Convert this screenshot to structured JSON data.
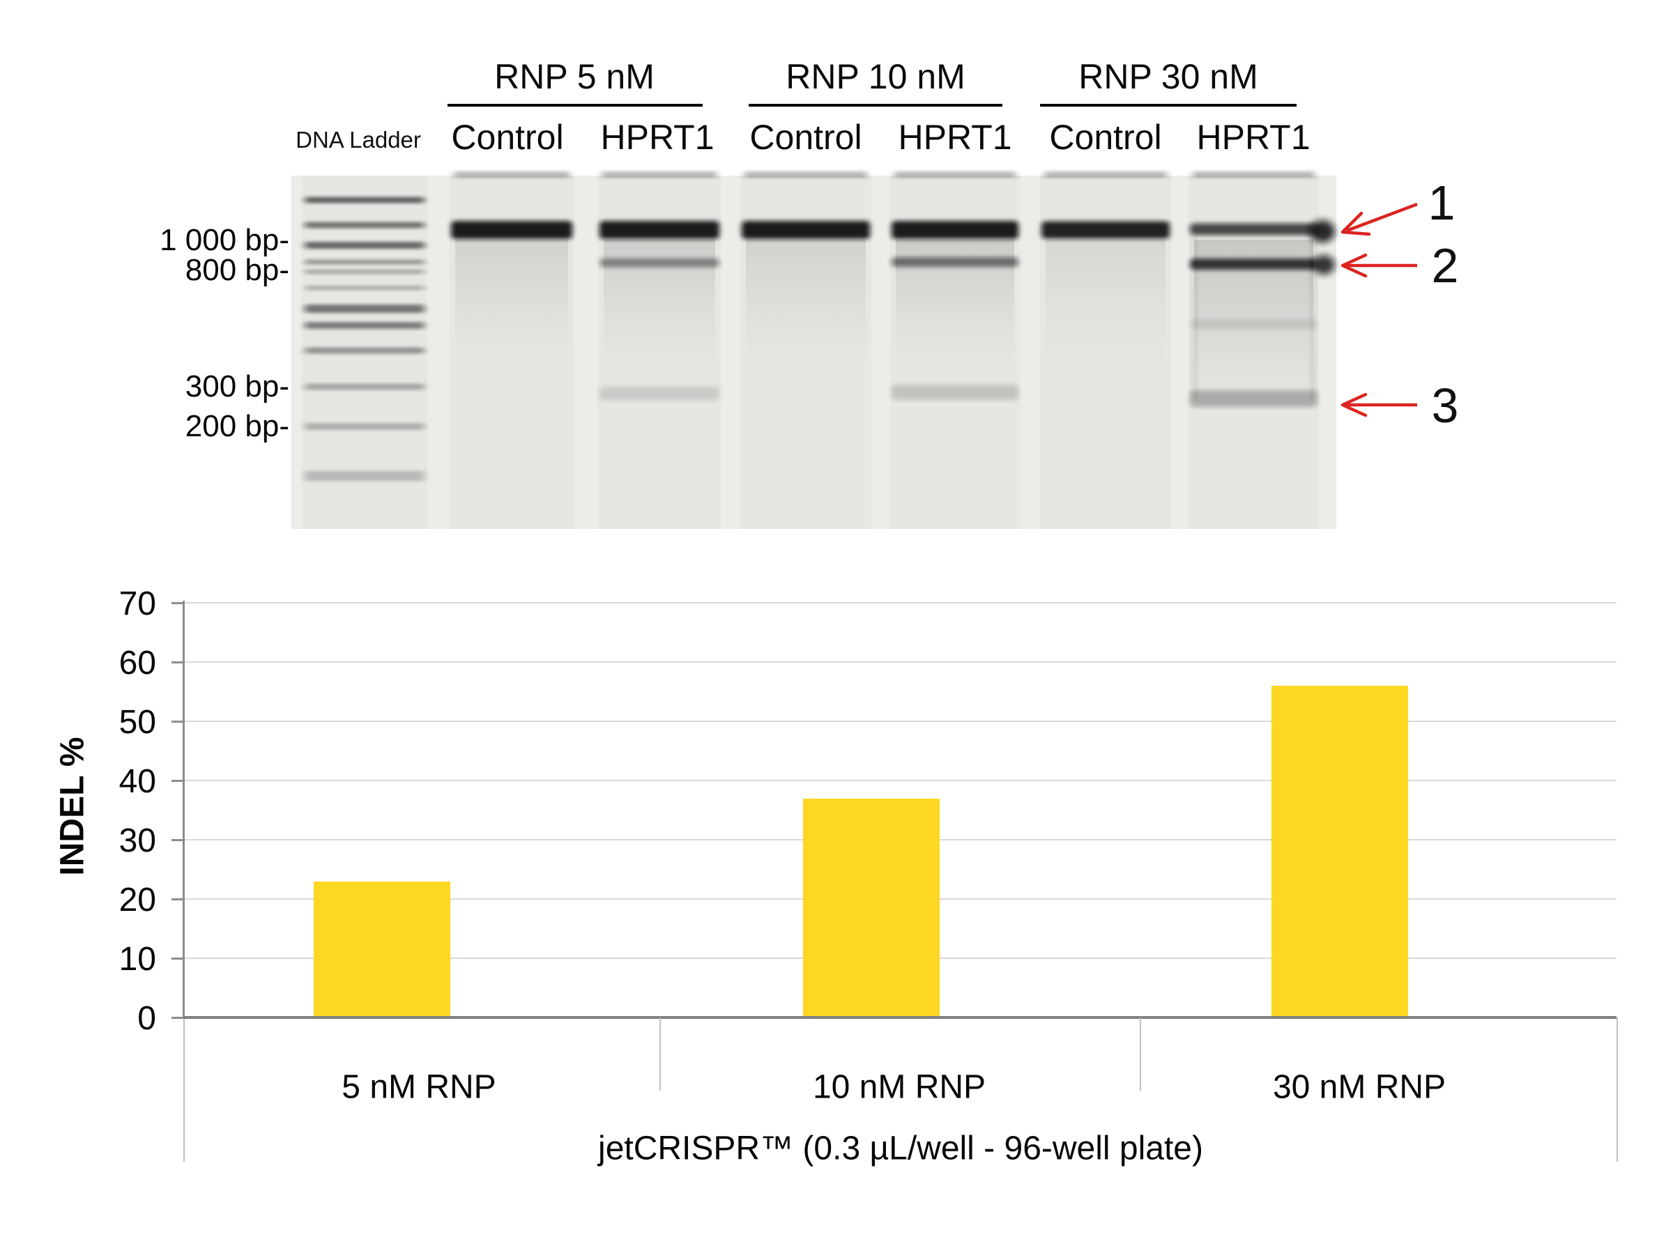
{
  "figure": {
    "description_note": "gel electrophoresis panel above an INDEL percentage bar chart"
  },
  "gel": {
    "groups": [
      {
        "label": "RNP 5 nM"
      },
      {
        "label": "RNP 10 nM"
      },
      {
        "label": "RNP 30 nM"
      }
    ],
    "ladder_label": "DNA Ladder",
    "lane_labels": [
      "Control",
      "HPRT1",
      "Control",
      "HPRT1",
      "Control",
      "HPRT1"
    ],
    "bp_labels": [
      "1 000 bp-",
      "800 bp-",
      "300 bp-",
      "200 bp-"
    ],
    "arrows": [
      {
        "label": "1"
      },
      {
        "label": "2"
      },
      {
        "label": "3"
      }
    ]
  },
  "chart_data": {
    "type": "bar",
    "title": "",
    "categories": [
      "5 nM RNP",
      "10 nM RNP",
      "30 nM RNP"
    ],
    "values": [
      23,
      37,
      56
    ],
    "xlabel": "jetCRISPR™ (0.3 µL/well - 96-well plate)",
    "ylabel": "INDEL %",
    "ylim": [
      0,
      70
    ],
    "yticks": [
      0,
      10,
      20,
      30,
      40,
      50,
      60,
      70
    ],
    "grid": true,
    "legend": "none"
  },
  "colors": {
    "bar": "#FED722",
    "arrow": "#DC2420",
    "gridline": "#D9D9D9",
    "axis": "#8C8C8C",
    "zero_line": "#7F7F7F",
    "gel_background": "#ECECE9"
  }
}
